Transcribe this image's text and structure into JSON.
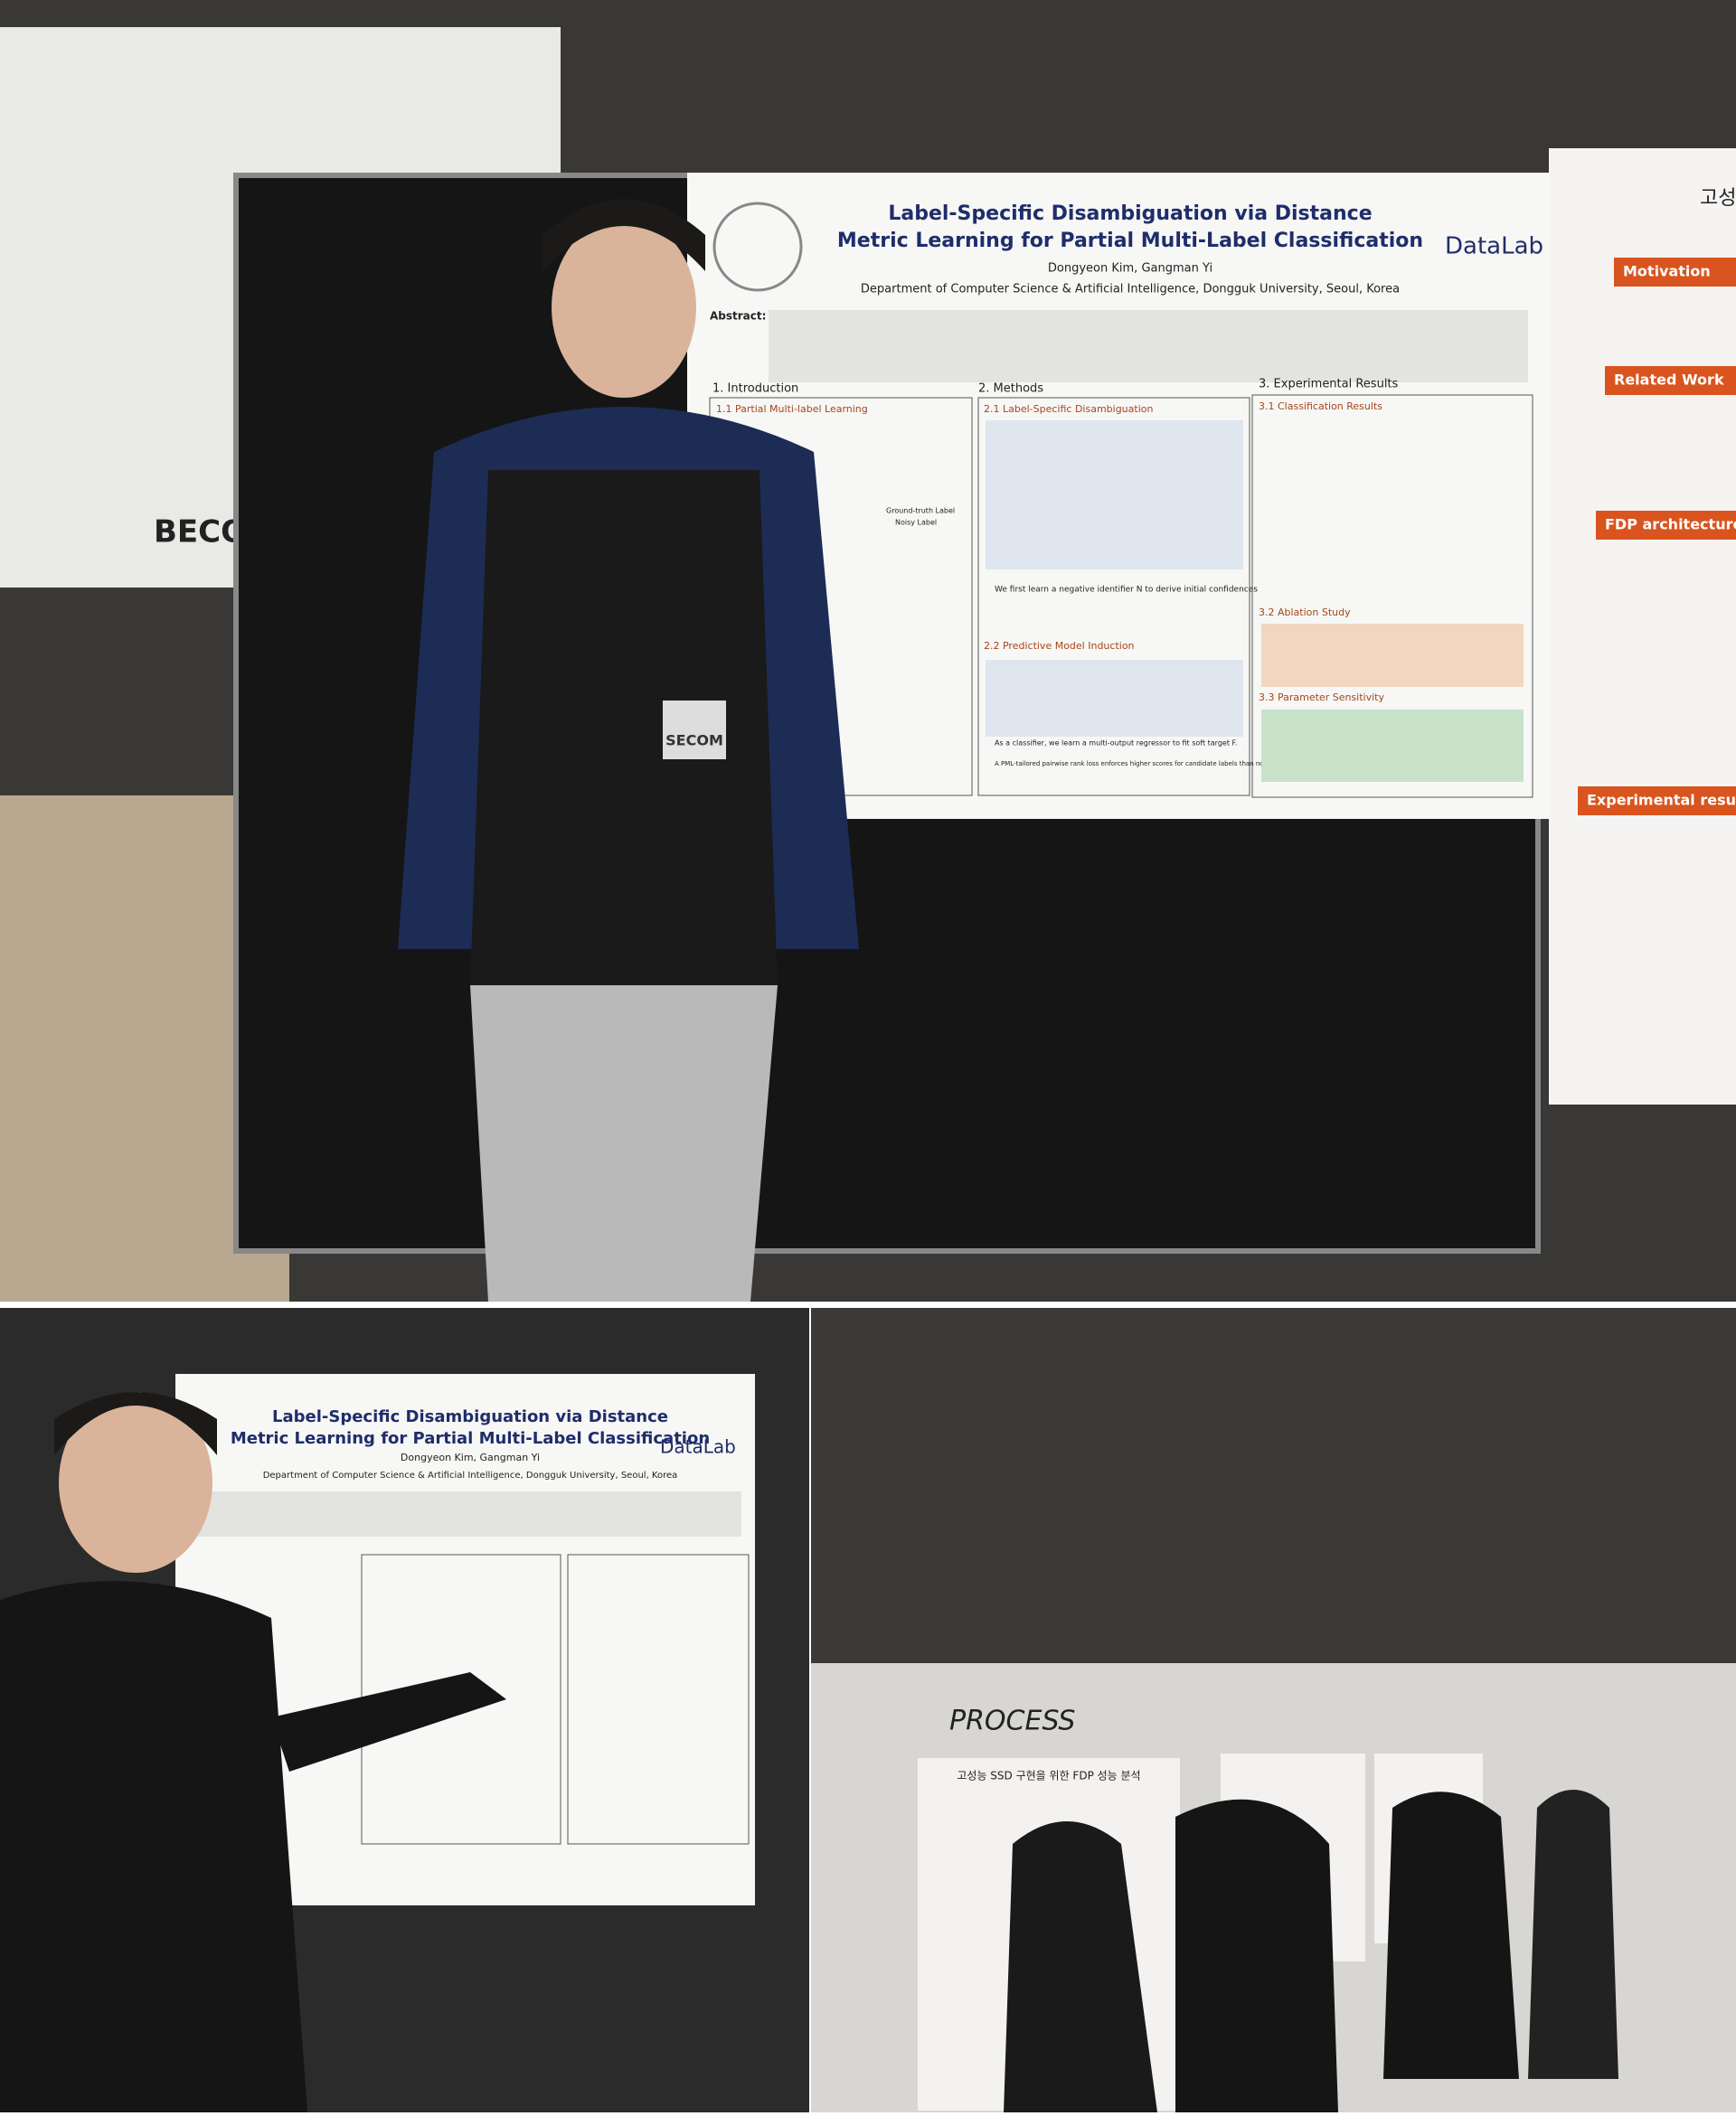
{
  "photo_1": {
    "wall_text": "BECOME",
    "badge": "SECOM",
    "poster": {
      "title_lines": [
        "Label-Specific Disambiguation via Distance",
        "Metric Learning for Partial Multi-Label Classification"
      ],
      "logo": "DataLab",
      "authors": "Dongyeon Kim, Gangman Yi",
      "affiliation": "Department of Computer Science & Artificial Intelligence, Dongguk University, Seoul, Korea",
      "abstract_label": "Abstract:",
      "sections": [
        "1. Introduction",
        "2. Methods",
        "3. Experimental Results"
      ],
      "subsections": [
        "1.1 Partial Multi-label Learning",
        "2.1 Label-Specific Disambiguation",
        "2.2 Predictive Model Induction",
        "3.1 Classification Results",
        "3.2 Ablation Study",
        "3.3 Parameter Sensitivity"
      ],
      "figure_labels": [
        "Ground-truth Label",
        "Noisy Label"
      ],
      "bullets": [
        "We first learn a negative identifier N to derive initial confidences",
        "As a classifier, we learn a multi-output regressor to fit soft target F.",
        "A PML-tailored pairwise rank loss enforces higher scores for candidate labels than non-candidate labels."
      ]
    },
    "side_poster": {
      "title": "고성",
      "headings": [
        "Motivation",
        "Related Work",
        "FDP architecture",
        "Experimental results"
      ]
    }
  },
  "photo_2": {
    "poster": {
      "title_lines": [
        "Label-Specific Disambiguation via Distance",
        "Metric Learning for Partial Multi-Label Classification"
      ],
      "logo": "DataLab",
      "authors": "Dongyeon Kim, Gangman Yi",
      "affiliation": "Department of Computer Science & Artificial Intelligence, Dongguk University, Seoul, Korea"
    }
  },
  "photo_3": {
    "wall_text": "PROCESS",
    "poster_title": "고성능 SSD 구현을 위한 FDP 성능 분석"
  }
}
